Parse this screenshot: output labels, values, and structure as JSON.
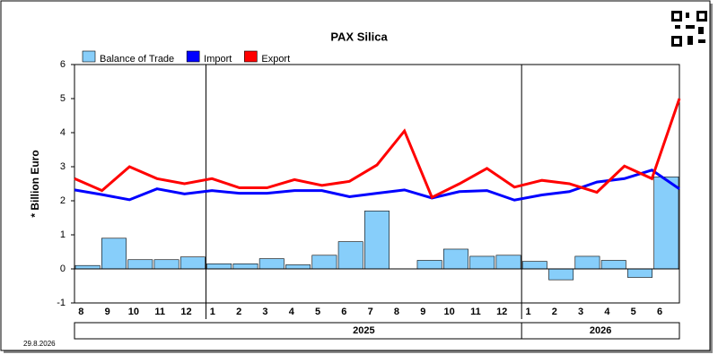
{
  "chart_data": {
    "type": "bar",
    "title": "PAX Silica",
    "y_label": "* Billion Euro",
    "date": "29.8.2026",
    "categories": [
      "8",
      "9",
      "10",
      "11",
      "12",
      "1",
      "2",
      "3",
      "4",
      "5",
      "6",
      "7",
      "8",
      "9",
      "10",
      "11",
      "12",
      "1",
      "2",
      "3",
      "4",
      "5",
      "6"
    ],
    "years": [
      "2025",
      "2026"
    ],
    "ylim": [
      -1,
      6
    ],
    "yticks": [
      -1,
      0,
      1,
      2,
      3,
      4,
      5,
      6
    ],
    "series": [
      {
        "name": "Balance of Trade",
        "type": "bar",
        "color": "#87cefa",
        "values": [
          0.1,
          0.9,
          0.27,
          0.27,
          0.35,
          0.15,
          0.15,
          0.3,
          0.12,
          0.4,
          0.8,
          1.7,
          0,
          0.25,
          0.58,
          0.37,
          0.4,
          0.22,
          -0.32,
          0.37,
          0.25,
          -0.25,
          2.7
        ]
      },
      {
        "name": "Import",
        "type": "line",
        "color": "#0000ff",
        "values": [
          2.32,
          2.18,
          2.03,
          2.35,
          2.2,
          2.3,
          2.22,
          2.22,
          2.3,
          2.3,
          2.12,
          2.22,
          2.32,
          2.08,
          2.27,
          2.3,
          2.02,
          2.17,
          2.27,
          2.55,
          2.65,
          2.9,
          2.35
        ]
      },
      {
        "name": "Export",
        "type": "line",
        "color": "#ff0000",
        "values": [
          2.65,
          2.3,
          3.0,
          2.65,
          2.5,
          2.65,
          2.38,
          2.38,
          2.62,
          2.45,
          2.57,
          3.05,
          4.05,
          2.1,
          2.5,
          2.95,
          2.4,
          2.6,
          2.5,
          2.25,
          3.02,
          2.65,
          5.0
        ]
      }
    ]
  }
}
